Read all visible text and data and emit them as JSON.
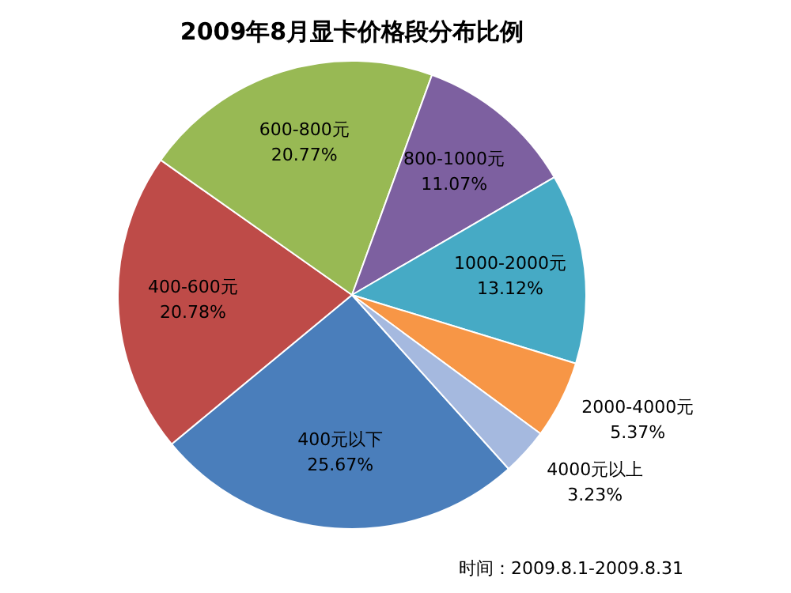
{
  "chart_data": {
    "type": "pie",
    "title": "2009年8月显卡价格段分布比例",
    "categories": [
      "400元以下",
      "400-600元",
      "600-800元",
      "800-1000元",
      "1000-2000元",
      "2000-4000元",
      "4000元以上"
    ],
    "values": [
      25.67,
      20.78,
      20.77,
      11.07,
      13.12,
      5.37,
      3.23
    ],
    "value_labels": [
      "25.67%",
      "20.78%",
      "20.77%",
      "11.07%",
      "13.12%",
      "5.37%",
      "3.23%"
    ],
    "colors": [
      "#4a7ebb",
      "#be4b48",
      "#98b954",
      "#7d60a0",
      "#46aac5",
      "#f79646",
      "#a5b9df"
    ],
    "annotations": [
      "时间：2009.8.1-2009.8.31"
    ],
    "legend": false
  }
}
